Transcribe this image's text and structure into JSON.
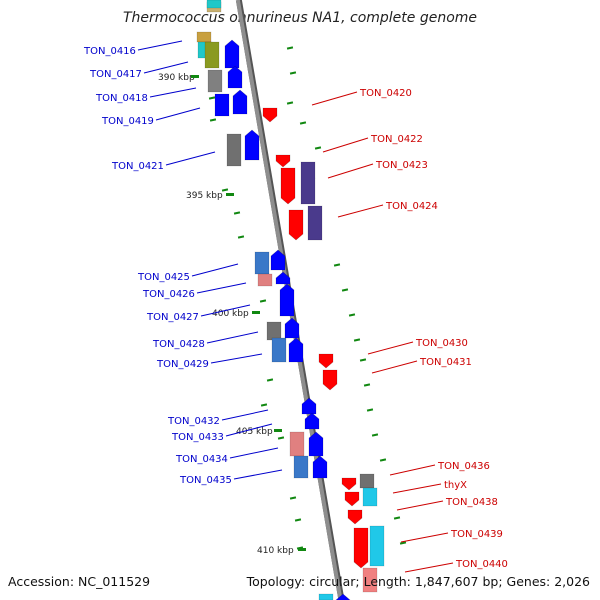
{
  "title": "Thermococcus onnurineus NA1, complete genome",
  "footer": {
    "accession": "Accession: NC_011529",
    "topology": "Topology: circular; Length: 1,847,607 bp; Genes: 2,026"
  },
  "colors": {
    "backbone": "#8e8e8e",
    "forward": "#0000ff",
    "reverse": "#ff0000",
    "tick": "#118811",
    "left_label": "#0000cc",
    "right_label": "#cc0000"
  },
  "scale_labels": [
    "390 kbp",
    "395 kbp",
    "400 kbp",
    "405 kbp",
    "410 kbp"
  ],
  "left_genes": [
    "TON_0416",
    "TON_0417",
    "TON_0418",
    "TON_0419",
    "TON_0421",
    "TON_0425",
    "TON_0426",
    "TON_0427",
    "TON_0428",
    "TON_0429",
    "TON_0432",
    "TON_0433",
    "TON_0434",
    "TON_0435"
  ],
  "right_genes": [
    "TON_0420",
    "TON_0422",
    "TON_0423",
    "TON_0424",
    "TON_0430",
    "TON_0431",
    "TON_0436",
    "thyX",
    "TON_0438",
    "TON_0439",
    "TON_0440"
  ]
}
